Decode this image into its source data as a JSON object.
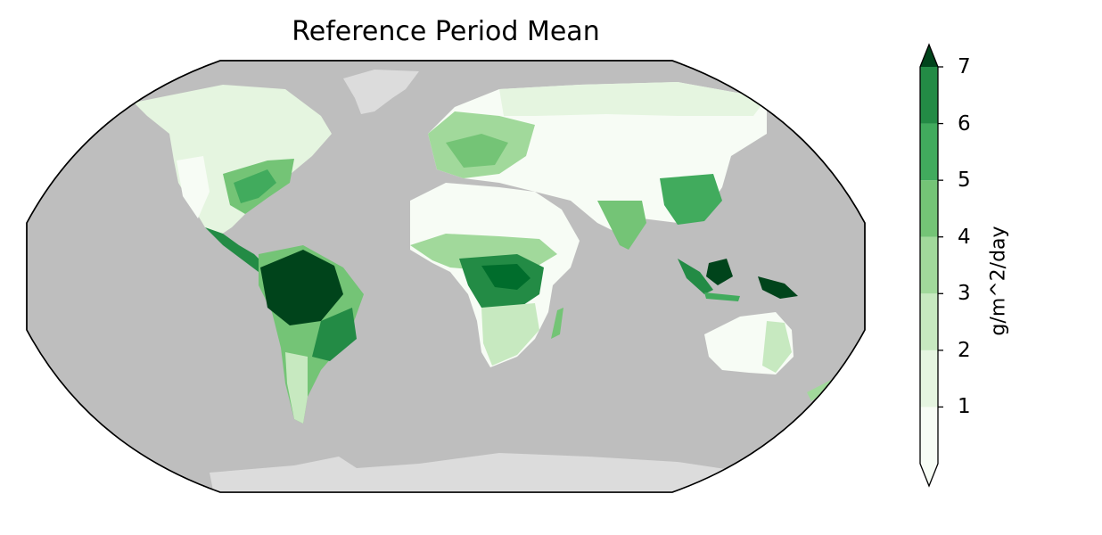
{
  "title": "Reference Period Mean",
  "colorbar": {
    "label": "g/m^2/day",
    "ticks": [
      "1",
      "2",
      "3",
      "4",
      "5",
      "6",
      "7"
    ],
    "tick_values": [
      1,
      2,
      3,
      4,
      5,
      6,
      7
    ],
    "range": [
      0,
      7
    ],
    "extend": "both",
    "colors": [
      "#f7fcf5",
      "#e5f5e0",
      "#c7e9c0",
      "#a1d99b",
      "#74c476",
      "#41ab5d",
      "#238b45",
      "#006d2c",
      "#00441b"
    ]
  },
  "map": {
    "projection": "Robinson",
    "ocean_color": "#bebebe",
    "ice_color": "#dcdcdc"
  }
}
